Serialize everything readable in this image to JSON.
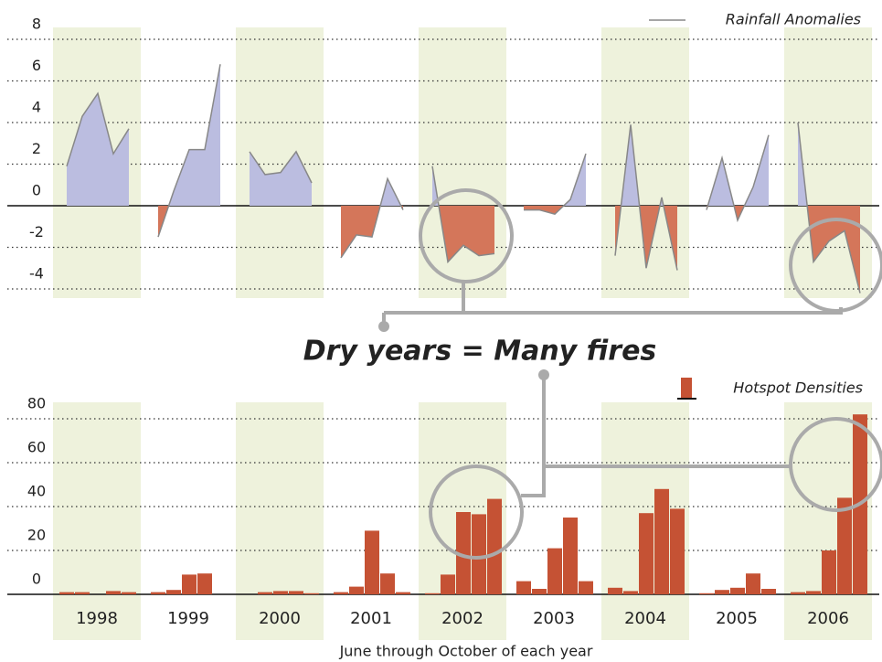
{
  "chart_data": [
    {
      "type": "area",
      "series": [
        {
          "name": "Rainfall Anomalies",
          "color": "#888888",
          "values": [
            [
              1.9,
              4.3,
              5.4,
              2.5,
              3.7
            ],
            [
              -1.5,
              0.7,
              2.7,
              2.7,
              6.8
            ],
            [
              2.6,
              1.5,
              1.6,
              2.6,
              1.1
            ],
            [
              -2.5,
              -1.4,
              -1.5,
              1.3,
              -0.2
            ],
            [
              1.9,
              -2.7,
              -1.9,
              -2.4,
              -2.3
            ],
            [
              -0.2,
              -0.2,
              -0.4,
              0.3,
              2.5
            ],
            [
              -2.4,
              3.9,
              -3.0,
              0.4,
              -3.1
            ],
            [
              -0.2,
              2.3,
              -0.7,
              0.9,
              3.4
            ],
            [
              4.0,
              -2.7,
              -1.7,
              -1.2,
              -4.2
            ]
          ]
        }
      ],
      "positive_color": "#bbbde0",
      "negative_color": "#d4765a",
      "ylim": [
        -4.5,
        8.2
      ],
      "yticks": [
        -4,
        -2,
        0,
        2,
        4,
        6,
        8
      ],
      "grid": true
    },
    {
      "type": "bar",
      "categories": [
        "1998",
        "1999",
        "2000",
        "2001",
        "2002",
        "2003",
        "2004",
        "2005",
        "2006"
      ],
      "series": [
        {
          "name": "Hotspot Densities",
          "color": "#c55234",
          "values": [
            [
              1,
              1,
              0,
              1.5,
              1
            ],
            [
              1,
              2,
              9,
              9.5,
              0
            ],
            [
              0,
              1,
              1.5,
              1.5,
              0.5
            ],
            [
              1,
              3.5,
              29,
              9.5,
              1
            ],
            [
              0.5,
              9,
              37.5,
              36.5,
              43.5
            ],
            [
              6,
              2.5,
              21,
              35,
              6
            ],
            [
              3,
              1.5,
              37,
              48,
              39
            ],
            [
              0.5,
              2,
              3,
              9.5,
              2.5
            ],
            [
              1,
              1.5,
              20,
              44,
              82
            ]
          ]
        }
      ],
      "ylim": [
        -1,
        85
      ],
      "yticks": [
        0,
        20,
        40,
        60,
        80
      ],
      "grid": true,
      "band_color": "#eef2dc",
      "x_label": "June through October of each year",
      "annotation": "Dry years  = Many fires"
    }
  ]
}
